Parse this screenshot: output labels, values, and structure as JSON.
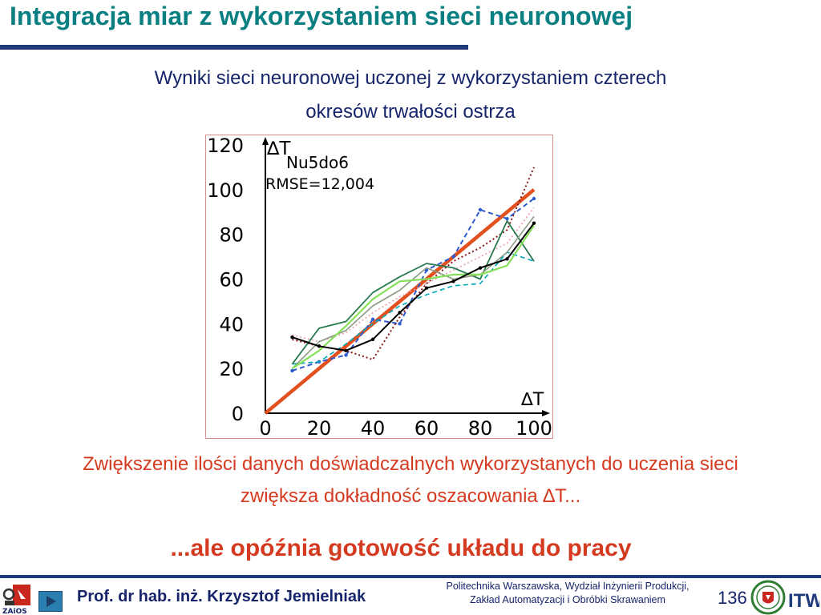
{
  "title": "Integracja miar z wykorzystaniem sieci neuronowej",
  "subtitle_line1": "Wyniki sieci neuronowej uczonej z wykorzystaniem czterech",
  "subtitle_line2": "okresów trwałości ostrza",
  "chart_data": {
    "type": "line",
    "ylabel_main": "∆T",
    "ylabel_sub": "Nu5do6",
    "annotation": "RMSE=12,004",
    "xlabel": "∆T",
    "xlim": [
      0,
      100
    ],
    "ylim": [
      0,
      120
    ],
    "x_ticks": [
      "0",
      "20",
      "40",
      "60",
      "80",
      "100"
    ],
    "y_ticks": [
      "0",
      "20",
      "40",
      "60",
      "80",
      "100",
      "120"
    ],
    "series": [
      {
        "color": "#e2501f",
        "style": "solid",
        "width": 4.5,
        "marker": false,
        "points": [
          [
            0,
            0
          ],
          [
            100,
            100
          ]
        ]
      },
      {
        "color": "#2e5bd0",
        "style": "dash",
        "width": 2,
        "marker": true,
        "points": [
          [
            10,
            19
          ],
          [
            20,
            23
          ],
          [
            30,
            26
          ],
          [
            40,
            42
          ],
          [
            50,
            40
          ],
          [
            60,
            64
          ],
          [
            70,
            70
          ],
          [
            80,
            91
          ],
          [
            90,
            87
          ],
          [
            100,
            96
          ]
        ]
      },
      {
        "color": "#00a8b8",
        "style": "dash",
        "width": 1.6,
        "marker": false,
        "points": [
          [
            10,
            22
          ],
          [
            20,
            23
          ],
          [
            30,
            31
          ],
          [
            40,
            40
          ],
          [
            50,
            48
          ],
          [
            60,
            53
          ],
          [
            70,
            57
          ],
          [
            80,
            58
          ],
          [
            90,
            72
          ],
          [
            100,
            68
          ]
        ]
      },
      {
        "color": "#8a1a1a",
        "style": "dot",
        "width": 2,
        "marker": false,
        "points": [
          [
            10,
            33
          ],
          [
            20,
            30
          ],
          [
            30,
            28
          ],
          [
            40,
            24
          ],
          [
            50,
            43
          ],
          [
            60,
            58
          ],
          [
            70,
            68
          ],
          [
            80,
            74
          ],
          [
            90,
            82
          ],
          [
            100,
            110
          ]
        ]
      },
      {
        "color": "#e8a0a8",
        "style": "dot",
        "width": 1.6,
        "marker": false,
        "points": [
          [
            10,
            35
          ],
          [
            20,
            32
          ],
          [
            30,
            36
          ],
          [
            40,
            45
          ],
          [
            50,
            52
          ],
          [
            60,
            58
          ],
          [
            70,
            64
          ],
          [
            80,
            70
          ],
          [
            90,
            76
          ],
          [
            100,
            92
          ]
        ]
      },
      {
        "color": "#2a7a50",
        "style": "solid",
        "width": 1.8,
        "marker": false,
        "points": [
          [
            10,
            22
          ],
          [
            20,
            38
          ],
          [
            30,
            41
          ],
          [
            40,
            54
          ],
          [
            50,
            61
          ],
          [
            60,
            67
          ],
          [
            70,
            65
          ],
          [
            80,
            60
          ],
          [
            90,
            86
          ],
          [
            100,
            68
          ]
        ]
      },
      {
        "color": "#8a9b82",
        "style": "solid",
        "width": 1.6,
        "marker": false,
        "points": [
          [
            10,
            20
          ],
          [
            20,
            32
          ],
          [
            30,
            37
          ],
          [
            40,
            48
          ],
          [
            50,
            55
          ],
          [
            60,
            65
          ],
          [
            70,
            60
          ],
          [
            80,
            62
          ],
          [
            90,
            72
          ],
          [
            100,
            88
          ]
        ]
      },
      {
        "color": "#86e05a",
        "style": "solid",
        "width": 2.2,
        "marker": false,
        "points": [
          [
            10,
            20
          ],
          [
            20,
            28
          ],
          [
            30,
            39
          ],
          [
            40,
            51
          ],
          [
            50,
            59
          ],
          [
            60,
            60
          ],
          [
            70,
            62
          ],
          [
            80,
            62
          ],
          [
            90,
            66
          ],
          [
            100,
            84
          ]
        ]
      },
      {
        "color": "#000000",
        "style": "solid",
        "width": 2,
        "marker": true,
        "points": [
          [
            10,
            34
          ],
          [
            20,
            30
          ],
          [
            30,
            28
          ],
          [
            40,
            33
          ],
          [
            50,
            45
          ],
          [
            60,
            56
          ],
          [
            70,
            59
          ],
          [
            80,
            65
          ],
          [
            90,
            69
          ],
          [
            100,
            85
          ]
        ]
      }
    ]
  },
  "note_line1": "Zwiększenie ilości danych doświadczalnych wykorzystanych do uczenia sieci",
  "note_line2": "zwiększa dokładność oszacowania ∆T...",
  "conclusion": "...ale opóźnia gotowość układu do pracy",
  "footer": {
    "author": "Prof. dr hab. inż. Krzysztof Jemielniak",
    "institution_line1": "Politechnika Warszawska, Wydział Inżynierii Produkcji,",
    "institution_line2": "Zakład Automatyzacji i Obróbki Skrawaniem",
    "page_number": "136",
    "logo_left_text": "ZAiOS",
    "logo_right_text": "ITW"
  },
  "colors": {
    "title": "#0a7f82",
    "accent_red": "#d43a20",
    "navy": "#16256b",
    "rule": "#1f3a7a"
  }
}
